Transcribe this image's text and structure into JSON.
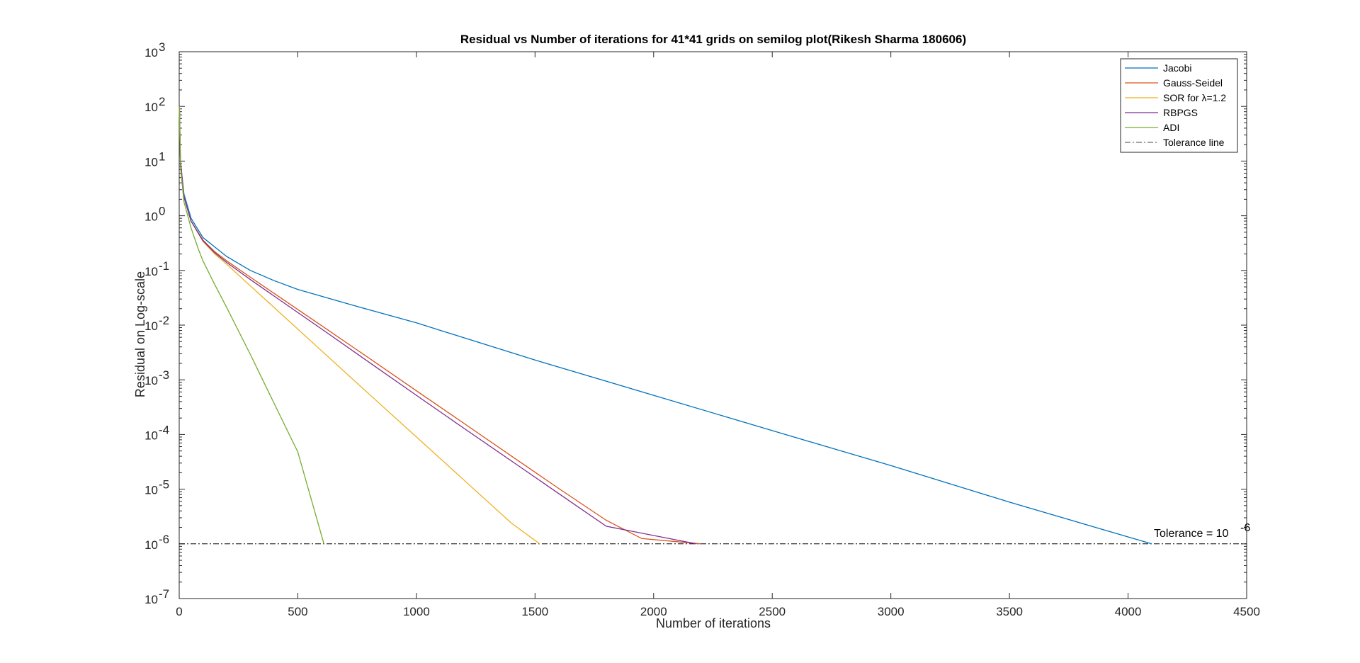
{
  "chart_data": {
    "type": "line",
    "title": "Residual vs Number of iterations for 41*41 grids on semilog plot(Rikesh Sharma 180606)",
    "xlabel": "Number of iterations",
    "ylabel": "Residual on Log-scale",
    "xlim": [
      0,
      4500
    ],
    "ylim_exponent": [
      -7,
      3
    ],
    "yscale": "log",
    "x_ticks": [
      "0",
      "500",
      "1000",
      "1500",
      "2000",
      "2500",
      "3000",
      "3500",
      "4000",
      "4500"
    ],
    "y_tick_base": "10",
    "y_tick_exponents": [
      "3",
      "2",
      "1",
      "0",
      "-1",
      "-2",
      "-3",
      "-4",
      "-5",
      "-6",
      "-7"
    ],
    "grid": false,
    "legend_placement": "top-right",
    "series": [
      {
        "name": "Jacobi",
        "color": "#0072BD",
        "points": [
          [
            1,
            100
          ],
          [
            5,
            10
          ],
          [
            20,
            2.5
          ],
          [
            50,
            0.9
          ],
          [
            100,
            0.4
          ],
          [
            200,
            0.18
          ],
          [
            300,
            0.1
          ],
          [
            400,
            0.065
          ],
          [
            500,
            0.045
          ],
          [
            750,
            0.022
          ],
          [
            1000,
            0.011
          ],
          [
            1500,
            0.0023
          ],
          [
            2000,
            0.00052
          ],
          [
            2500,
            0.000118
          ],
          [
            3000,
            2.7e-05
          ],
          [
            3500,
            5.8e-06
          ],
          [
            4100,
            1e-06
          ]
        ]
      },
      {
        "name": "Gauss-Seidel",
        "color": "#D95319",
        "points": [
          [
            1,
            100
          ],
          [
            5,
            10
          ],
          [
            20,
            2.2
          ],
          [
            50,
            0.8
          ],
          [
            100,
            0.36
          ],
          [
            150,
            0.22
          ],
          [
            200,
            0.15
          ],
          [
            300,
            0.075
          ],
          [
            400,
            0.038
          ],
          [
            600,
            0.0098
          ],
          [
            800,
            0.0025
          ],
          [
            1000,
            0.00063
          ],
          [
            1200,
            0.00016
          ],
          [
            1400,
            4.05e-05
          ],
          [
            1600,
            1.03e-05
          ],
          [
            1800,
            2.7e-06
          ],
          [
            1950,
            1.25e-06
          ],
          [
            2200,
            1e-06
          ]
        ]
      },
      {
        "name": "SOR for λ=1.2",
        "color": "#EDB120",
        "points": [
          [
            1,
            100
          ],
          [
            5,
            10
          ],
          [
            20,
            2.2
          ],
          [
            50,
            0.8
          ],
          [
            100,
            0.34
          ],
          [
            150,
            0.2
          ],
          [
            200,
            0.13
          ],
          [
            300,
            0.052
          ],
          [
            400,
            0.021
          ],
          [
            600,
            0.0034
          ],
          [
            800,
            0.00055
          ],
          [
            1000,
            9e-05
          ],
          [
            1200,
            1.47e-05
          ],
          [
            1400,
            2.4e-06
          ],
          [
            1520,
            1e-06
          ]
        ]
      },
      {
        "name": "RBPGS",
        "color": "#7E2F8E",
        "points": [
          [
            1,
            100
          ],
          [
            5,
            10
          ],
          [
            20,
            2.2
          ],
          [
            50,
            0.8
          ],
          [
            100,
            0.35
          ],
          [
            150,
            0.21
          ],
          [
            200,
            0.14
          ],
          [
            300,
            0.068
          ],
          [
            400,
            0.034
          ],
          [
            600,
            0.0085
          ],
          [
            800,
            0.0021
          ],
          [
            1000,
            0.00052
          ],
          [
            1200,
            0.00013
          ],
          [
            1400,
            3.3e-05
          ],
          [
            1600,
            8.3e-06
          ],
          [
            1800,
            2.1e-06
          ],
          [
            2180,
            1e-06
          ]
        ]
      },
      {
        "name": "ADI",
        "color": "#77AC30",
        "points": [
          [
            1,
            100
          ],
          [
            5,
            8
          ],
          [
            20,
            1.8
          ],
          [
            50,
            0.6
          ],
          [
            80,
            0.25
          ],
          [
            100,
            0.15
          ],
          [
            150,
            0.055
          ],
          [
            200,
            0.021
          ],
          [
            300,
            0.0029
          ],
          [
            400,
            0.00037
          ],
          [
            500,
            4.8e-05
          ],
          [
            610,
            1e-06
          ]
        ]
      }
    ],
    "reference_line": {
      "name": "Tolerance line",
      "y": 1e-06,
      "color": "#000000",
      "style": "dash-dot"
    },
    "annotation": {
      "text": "Tolerance = 10",
      "superscript": "-6",
      "x": 4100,
      "y": 1e-06
    }
  }
}
